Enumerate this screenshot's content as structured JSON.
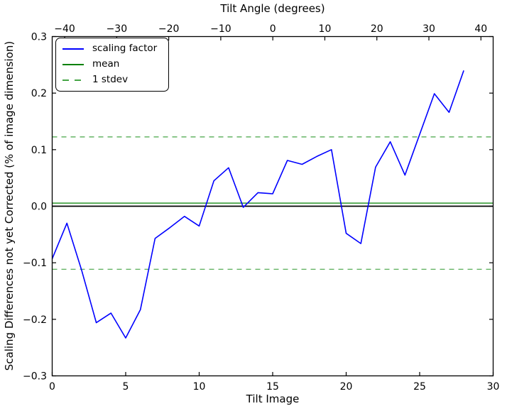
{
  "colors": {
    "series": "#0000ff",
    "mean": "#008000",
    "stdev": "#46a546",
    "zero_line": "#000000",
    "axis": "#000000",
    "background": "#ffffff"
  },
  "legend": {
    "position": "upper left",
    "items": [
      {
        "label": "scaling factor",
        "style": "solid",
        "color": "#0000ff"
      },
      {
        "label": "mean",
        "style": "solid",
        "color": "#008000"
      },
      {
        "label": "1 stdev",
        "style": "dashed",
        "color": "#46a546"
      }
    ]
  },
  "chart_data": {
    "type": "line",
    "title": "",
    "x2label": "Tilt Angle (degrees)",
    "xlabel": "Tilt Image",
    "ylabel": "Scaling Differences not yet Corrected (% of image dimension)",
    "grid": false,
    "xlim": [
      0,
      30
    ],
    "ylim": [
      -0.3,
      0.3
    ],
    "x2lim": [
      -42.4,
      42.35
    ],
    "x": [
      0,
      1,
      2,
      3,
      4,
      5,
      6,
      7,
      8,
      9,
      10,
      11,
      12,
      13,
      14,
      15,
      16,
      17,
      18,
      19,
      20,
      21,
      22,
      23,
      24,
      25,
      26,
      27,
      28
    ],
    "series": [
      {
        "name": "scaling factor",
        "color": "#0000ff",
        "style": "solid",
        "values": [
          -0.093,
          -0.03,
          -0.113,
          -0.206,
          -0.189,
          -0.233,
          -0.183,
          -0.057,
          -0.038,
          -0.018,
          -0.035,
          0.045,
          0.068,
          -0.002,
          0.024,
          0.022,
          0.081,
          0.074,
          0.088,
          0.1,
          -0.048,
          -0.066,
          0.069,
          0.114,
          0.055,
          0.127,
          0.199,
          0.166,
          0.24
        ]
      }
    ],
    "mean_line": 0.0055,
    "stdev": 0.117,
    "stdev_lines": [
      0.1225,
      -0.1115
    ],
    "zero_line": 0.0,
    "xticks": {
      "values": [
        0,
        5,
        10,
        15,
        20,
        25,
        30
      ],
      "labels": [
        "0",
        "5",
        "10",
        "15",
        "20",
        "25",
        "30"
      ]
    },
    "yticks": {
      "values": [
        0.3,
        0.2,
        0.1,
        0.0,
        -0.1,
        -0.2,
        -0.3
      ],
      "labels": [
        "0.3",
        "0.2",
        "0.1",
        "0.0",
        "−0.1",
        "−0.2",
        "−0.3"
      ]
    },
    "x2ticks": {
      "values": [
        -40,
        -30,
        -20,
        -10,
        0,
        10,
        20,
        30,
        40
      ],
      "labels": [
        "−40",
        "−30",
        "−20",
        "−10",
        "0",
        "10",
        "20",
        "30",
        "40"
      ]
    }
  }
}
